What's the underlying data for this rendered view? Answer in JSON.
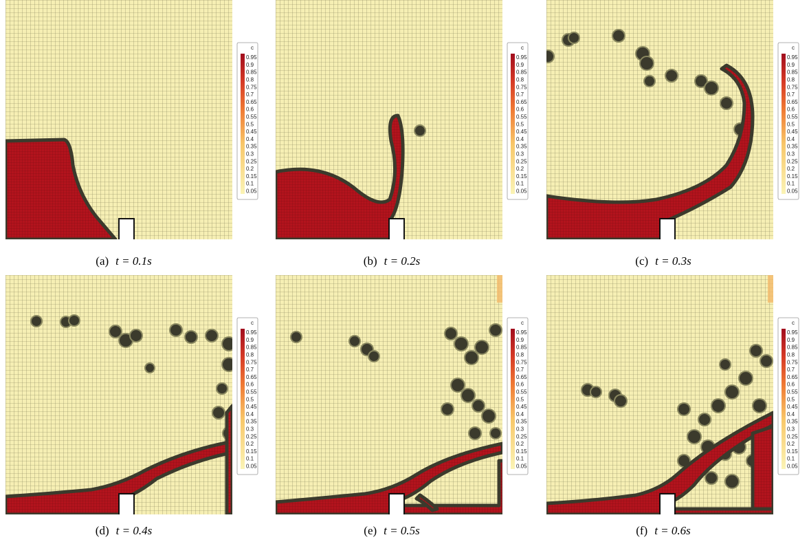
{
  "colorbar": {
    "title": "c",
    "ticks": [
      "0.95",
      "0.9",
      "0.85",
      "0.8",
      "0.75",
      "0.7",
      "0.65",
      "0.6",
      "0.55",
      "0.5",
      "0.45",
      "0.4",
      "0.35",
      "0.3",
      "0.25",
      "0.2",
      "0.15",
      "0.1",
      "0.05"
    ]
  },
  "panels": [
    {
      "label": "(a)",
      "caption": "t = 0.1s"
    },
    {
      "label": "(b)",
      "caption": "t = 0.2s"
    },
    {
      "label": "(c)",
      "caption": "t = 0.3s"
    },
    {
      "label": "(d)",
      "caption": "t = 0.4s"
    },
    {
      "label": "(e)",
      "caption": "t = 0.5s"
    },
    {
      "label": "(f)",
      "caption": "t = 0.6s"
    }
  ]
}
